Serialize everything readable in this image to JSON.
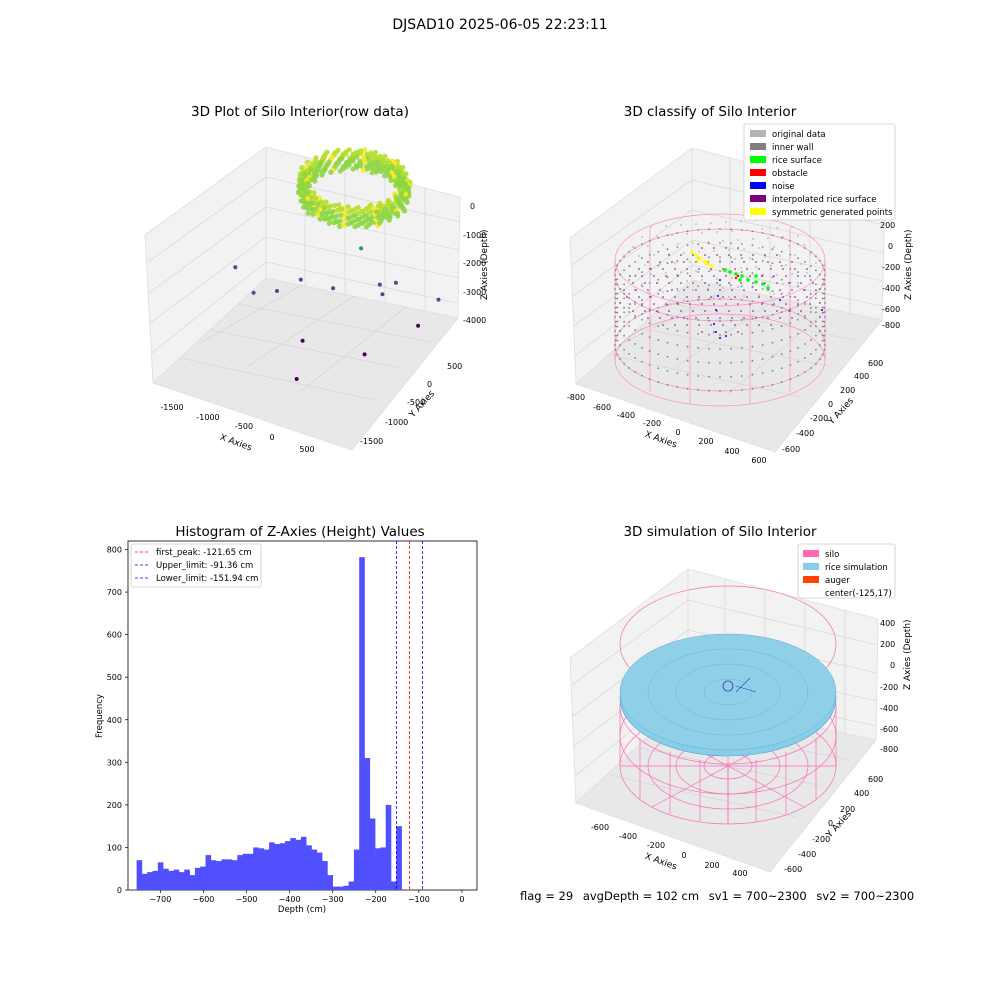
{
  "suptitle": "DJSAD10 2025-06-05 22:23:11",
  "status": {
    "flag": "flag = 29",
    "avg_depth": "avgDepth = 102 cm",
    "sv1": "sv1 = 700~2300",
    "sv2": "sv2 = 700~2300"
  },
  "chart_data": [
    {
      "type": "scatter",
      "title": "3D Plot of Silo Interior(row data)",
      "xlabel": "X Axies",
      "ylabel": "Y Axies",
      "zlabel": "Z Axies (Depth)",
      "xticks": [
        "-1500",
        "-1000",
        "-500",
        "0",
        "500"
      ],
      "yticks": [
        "500",
        "0",
        "-500",
        "-1000",
        "-1500"
      ],
      "zticks": [
        "0",
        "-1000",
        "-2000",
        "-3000",
        "-4000"
      ],
      "xlim": [
        -1800,
        800
      ],
      "ylim": [
        -1700,
        800
      ],
      "zlim": [
        -4500,
        200
      ],
      "colormap": [
        "#440154",
        "#3b528b",
        "#21918c",
        "#5ec962",
        "#fde725"
      ],
      "colorbar": "viridis",
      "ring": {
        "center_x": -125,
        "center_y": 17,
        "radius": 650,
        "depth_min": -200,
        "depth_max": -600
      },
      "outliers": [
        {
          "x": -1500,
          "y": -300,
          "z": -2900
        },
        {
          "x": -1150,
          "y": -500,
          "z": -3100
        },
        {
          "x": -900,
          "y": -400,
          "z": -3000
        },
        {
          "x": -700,
          "y": -200,
          "z": -2800
        },
        {
          "x": -500,
          "y": 200,
          "z": -3300
        },
        {
          "x": -400,
          "y": -700,
          "z": -3600
        },
        {
          "x": 0,
          "y": 400,
          "z": -3100
        },
        {
          "x": 100,
          "y": 600,
          "z": -3200
        },
        {
          "x": 300,
          "y": -500,
          "z": -3700
        },
        {
          "x": 500,
          "y": 400,
          "z": -3800
        },
        {
          "x": 600,
          "y": 700,
          "z": -3400
        },
        {
          "x": -200,
          "y": -1200,
          "z": -3900
        },
        {
          "x": 200,
          "y": 100,
          "z": -2900
        },
        {
          "x": -300,
          "y": 500,
          "z": -2500
        }
      ]
    },
    {
      "type": "scatter",
      "title": "3D classify of Silo Interior",
      "xlabel": "X Axies",
      "ylabel": "Y Axies",
      "zlabel": "Z Axies (Depth)",
      "xticks": [
        "-800",
        "-600",
        "-400",
        "-200",
        "0",
        "200",
        "400",
        "600"
      ],
      "yticks": [
        "600",
        "400",
        "200",
        "0",
        "-200",
        "-400",
        "-600"
      ],
      "zticks": [
        "200",
        "0",
        "-200",
        "-400",
        "-600",
        "-800"
      ],
      "xlim": [
        -800,
        600
      ],
      "ylim": [
        -700,
        700
      ],
      "zlim": [
        -1000,
        300
      ],
      "legend_position": "top-right",
      "legend": [
        {
          "label": "original data",
          "color": "#b4b4b4"
        },
        {
          "label": "inner wall",
          "color": "#808080"
        },
        {
          "label": "rice surface",
          "color": "#00ff00"
        },
        {
          "label": "obstacle",
          "color": "#ff0000"
        },
        {
          "label": "noise",
          "color": "#0000ff"
        },
        {
          "label": "interpolated rice surface",
          "color": "#800080"
        },
        {
          "label": "symmetric generated points",
          "color": "#ffff00"
        }
      ]
    },
    {
      "type": "bar",
      "title": "Histogram of Z-Axies (Height) Values",
      "xlabel": "Depth (cm)",
      "ylabel": "Frequency",
      "xlim": [
        -775,
        35
      ],
      "ylim": [
        0,
        820
      ],
      "xticks": [
        -700,
        -600,
        -500,
        -400,
        -300,
        -200,
        -100,
        0
      ],
      "yticks": [
        0,
        100,
        200,
        300,
        400,
        500,
        600,
        700,
        800
      ],
      "bar_color": "#5050ff",
      "bin_start": -755,
      "bin_width": 12.3,
      "values": [
        70,
        38,
        42,
        45,
        65,
        50,
        45,
        48,
        42,
        48,
        35,
        52,
        55,
        82,
        70,
        68,
        72,
        72,
        70,
        82,
        85,
        85,
        100,
        98,
        95,
        112,
        108,
        110,
        115,
        122,
        118,
        125,
        105,
        95,
        88,
        68,
        35,
        8,
        8,
        10,
        20,
        95,
        782,
        310,
        168,
        98,
        100,
        200,
        20,
        150
      ],
      "legend_position": "top-left",
      "lines": [
        {
          "label": "first_peak: -121.65 cm",
          "value": -121.65,
          "color": "#ff0000"
        },
        {
          "label": "Upper_limit: -91.36 cm",
          "value": -91.36,
          "color": "#0000ff"
        },
        {
          "label": "Lower_limit: -151.94 cm",
          "value": -151.94,
          "color": "#0000ff"
        }
      ]
    },
    {
      "type": "area",
      "title": "3D simulation of Silo Interior",
      "xlabel": "X Axies",
      "ylabel": "Y Axies",
      "zlabel": "Z Axies (Depth)",
      "xticks": [
        "-600",
        "-400",
        "-200",
        "0",
        "200",
        "400"
      ],
      "yticks": [
        "600",
        "400",
        "200",
        "0",
        "-200",
        "-400",
        "-600"
      ],
      "zticks": [
        "400",
        "200",
        "0",
        "-200",
        "-400",
        "-600",
        "-800"
      ],
      "xlim": [
        -700,
        450
      ],
      "ylim": [
        -700,
        700
      ],
      "zlim": [
        -950,
        450
      ],
      "legend_position": "top-right",
      "legend": [
        {
          "label": "silo",
          "color": "#ff69b4"
        },
        {
          "label": "rice simulation",
          "color": "#87ceeb"
        },
        {
          "label": "auger",
          "color": "#ff4500"
        },
        {
          "label": "center(-125,17)",
          "color": ""
        }
      ]
    }
  ]
}
